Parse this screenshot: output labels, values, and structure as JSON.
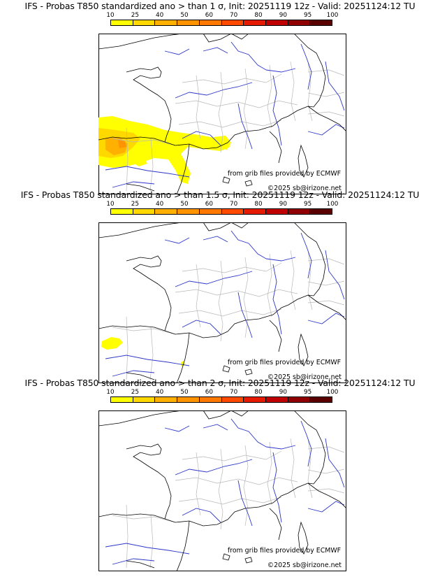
{
  "panels": [
    {
      "title": "IFS - Probas T850  standardized ano > than 1 σ, Init: 20251119 12z - Valid: 20251124:12 TU",
      "probability_areas": "large"
    },
    {
      "title": "IFS - Probas T850  standardized ano > than 1.5 σ, Init: 20251119 12z - Valid: 20251124:12 TU",
      "probability_areas": "small"
    },
    {
      "title": "IFS - Probas T850  standardized ano > than 2 σ, Init: 20251119 12z - Valid: 20251124:12 TU",
      "probability_areas": "none"
    }
  ],
  "scale": {
    "labels": [
      "10",
      "25",
      "40",
      "50",
      "60",
      "70",
      "80",
      "90",
      "95",
      "100"
    ],
    "colors": [
      "#ffff00",
      "#ffd800",
      "#ffb000",
      "#ff9400",
      "#ff7800",
      "#ff4a00",
      "#e61a00",
      "#c00000",
      "#900000",
      "#5a0000"
    ]
  },
  "credits": {
    "source": "from grib files provided by ECMWF",
    "copyright": "©2025 sb@irizone.net"
  }
}
